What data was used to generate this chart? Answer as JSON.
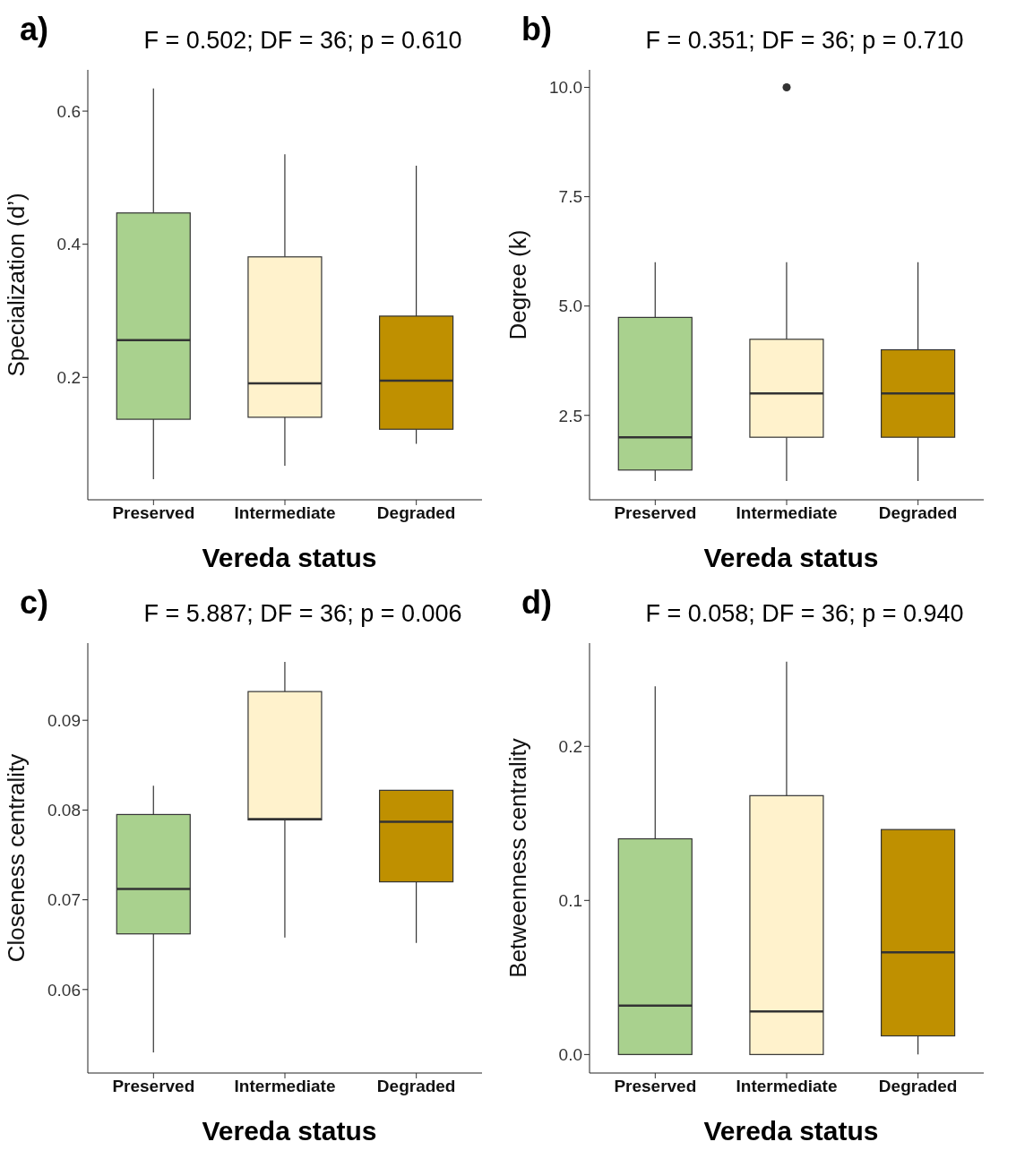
{
  "chart_data": [
    {
      "type": "box",
      "title": "F = 0.502; DF = 36; p = 0.610",
      "annotations": [
        "a)"
      ],
      "xlabel": "Vereda status",
      "ylabel": "Specialization (d’)",
      "categories": [
        "Preserved",
        "Intermediate",
        "Degraded"
      ],
      "colors": [
        "#a9d18e",
        "#fff2cc",
        "#bf9000"
      ],
      "boxes": [
        {
          "low": 0.047,
          "q1": 0.137,
          "median": 0.256,
          "q3": 0.447,
          "high": 0.634
        },
        {
          "low": 0.067,
          "q1": 0.14,
          "median": 0.191,
          "q3": 0.381,
          "high": 0.535
        },
        {
          "low": 0.1,
          "q1": 0.122,
          "median": 0.195,
          "q3": 0.292,
          "high": 0.518
        }
      ],
      "ylim": [
        0.016,
        0.662
      ],
      "yticks": [
        0.2,
        0.4,
        0.6
      ]
    },
    {
      "type": "box",
      "title": "F = 0.351; DF = 36; p = 0.710",
      "annotations": [
        "b)"
      ],
      "xlabel": "Vereda status",
      "ylabel": "Degree (k)",
      "categories": [
        "Preserved",
        "Intermediate",
        "Degraded"
      ],
      "colors": [
        "#a9d18e",
        "#fff2cc",
        "#bf9000"
      ],
      "boxes": [
        {
          "low": 1,
          "q1": 1.25,
          "median": 2,
          "q3": 4.74,
          "high": 6
        },
        {
          "low": 1,
          "q1": 2,
          "median": 3,
          "q3": 4.24,
          "high": 6,
          "outliers": [
            10
          ]
        },
        {
          "low": 1,
          "q1": 2,
          "median": 3,
          "q3": 4,
          "high": 6
        }
      ],
      "ylim": [
        0.57,
        10.4
      ],
      "yticks": [
        2.5,
        {
          "value": 5,
          "label": "5.0"
        },
        7.5,
        {
          "value": 10,
          "label": "10.0"
        }
      ]
    },
    {
      "type": "box",
      "title": "F = 5.887; DF = 36; p = 0.006",
      "annotations": [
        "c)"
      ],
      "xlabel": "Vereda status",
      "ylabel": "Closeness centrality",
      "categories": [
        "Preserved",
        "Intermediate",
        "Degraded"
      ],
      "colors": [
        "#a9d18e",
        "#fff2cc",
        "#bf9000"
      ],
      "boxes": [
        {
          "low": 0.053,
          "q1": 0.0662,
          "median": 0.0712,
          "q3": 0.0795,
          "high": 0.0827
        },
        {
          "low": 0.0658,
          "q1": 0.0789,
          "median": 0.079,
          "q3": 0.0932,
          "high": 0.0965
        },
        {
          "low": 0.0652,
          "q1": 0.072,
          "median": 0.0787,
          "q3": 0.0822,
          "high": 0.0822
        }
      ],
      "ylim": [
        0.0507,
        0.0986
      ],
      "yticks": [
        0.06,
        0.07,
        0.08,
        0.09
      ]
    },
    {
      "type": "box",
      "title": "F = 0.058; DF = 36; p = 0.940",
      "annotations": [
        "d)"
      ],
      "xlabel": "Vereda status",
      "ylabel": "Betweenness centrality",
      "categories": [
        "Preserved",
        "Intermediate",
        "Degraded"
      ],
      "colors": [
        "#a9d18e",
        "#fff2cc",
        "#bf9000"
      ],
      "boxes": [
        {
          "low": 0,
          "q1": 0,
          "median": 0.0318,
          "q3": 0.14,
          "high": 0.239
        },
        {
          "low": 0,
          "q1": 0,
          "median": 0.0279,
          "q3": 0.168,
          "high": 0.255
        },
        {
          "low": 0,
          "q1": 0.0121,
          "median": 0.0663,
          "q3": 0.146,
          "high": 0.146
        }
      ],
      "ylim": [
        -0.012,
        0.267
      ],
      "yticks": [
        {
          "value": 0,
          "label": "0.0"
        },
        0.1,
        0.2
      ]
    }
  ]
}
